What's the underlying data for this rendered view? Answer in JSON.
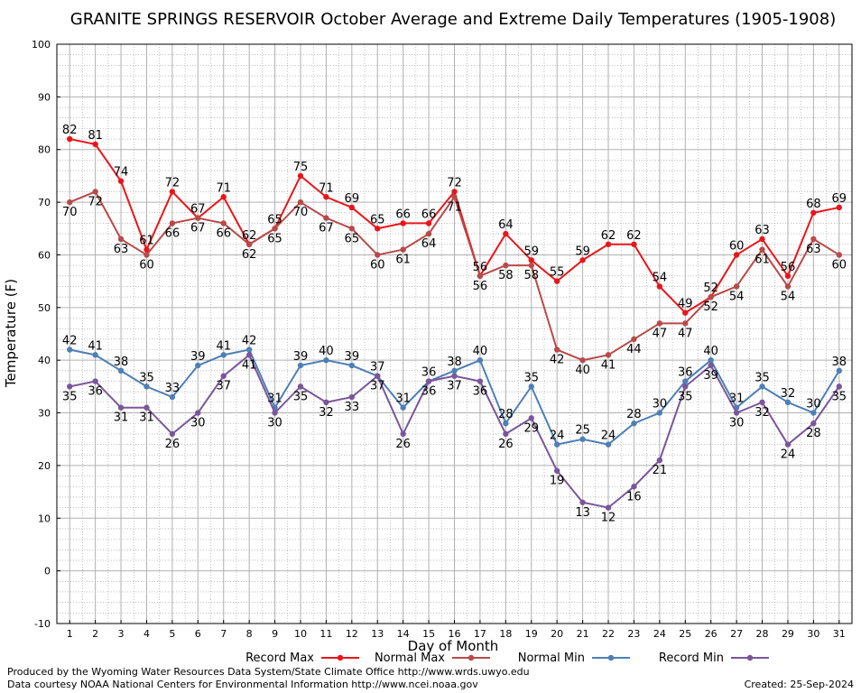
{
  "chart_data": {
    "type": "line",
    "title": "GRANITE SPRINGS RESERVOIR October Average and Extreme Daily Temperatures (1905-1908)",
    "xlabel": "Day of Month",
    "ylabel": "Temperature (F)",
    "x": [
      1,
      2,
      3,
      4,
      5,
      6,
      7,
      8,
      9,
      10,
      11,
      12,
      13,
      14,
      15,
      16,
      17,
      18,
      19,
      20,
      21,
      22,
      23,
      24,
      25,
      26,
      27,
      28,
      29,
      30,
      31
    ],
    "xlim": [
      0.5,
      31.5
    ],
    "ylim": [
      -10,
      100
    ],
    "yticks": [
      -10,
      0,
      10,
      20,
      30,
      40,
      50,
      60,
      70,
      80,
      90,
      100
    ],
    "grid": true,
    "legend_position": "bottom",
    "series": [
      {
        "name": "Record Max",
        "color": "#e8161a",
        "values": [
          82,
          81,
          74,
          61,
          72,
          67,
          71,
          62,
          65,
          75,
          71,
          69,
          65,
          66,
          66,
          72,
          56,
          64,
          59,
          55,
          59,
          62,
          62,
          54,
          49,
          52,
          60,
          63,
          56,
          68,
          69
        ]
      },
      {
        "name": "Normal Max",
        "color": "#b84a4a",
        "values": [
          70,
          72,
          63,
          60,
          66,
          67,
          66,
          62,
          65,
          70,
          67,
          65,
          60,
          61,
          64,
          71,
          56,
          58,
          58,
          42,
          40,
          41,
          44,
          47,
          47,
          52,
          54,
          61,
          54,
          63,
          60
        ]
      },
      {
        "name": "Normal Min",
        "color": "#4e7fb5",
        "values": [
          42,
          41,
          38,
          35,
          33,
          39,
          41,
          42,
          31,
          39,
          40,
          39,
          37,
          31,
          36,
          38,
          40,
          28,
          35,
          24,
          25,
          24,
          28,
          30,
          36,
          40,
          31,
          35,
          32,
          30,
          38
        ]
      },
      {
        "name": "Record Min",
        "color": "#7a569a",
        "values": [
          35,
          36,
          31,
          31,
          26,
          30,
          37,
          41,
          30,
          35,
          32,
          33,
          37,
          26,
          36,
          37,
          36,
          26,
          29,
          19,
          13,
          12,
          16,
          21,
          35,
          39,
          30,
          32,
          24,
          28,
          35
        ]
      }
    ]
  },
  "footer": {
    "left_line1": "Produced by the Wyoming Water Resources Data System/State Climate Office http://www.wrds.uwyo.edu",
    "left_line2": "Data courtesy NOAA National Centers for Environmental Information http://www.ncei.noaa.gov",
    "created": "Created:  25-Sep-2024"
  }
}
